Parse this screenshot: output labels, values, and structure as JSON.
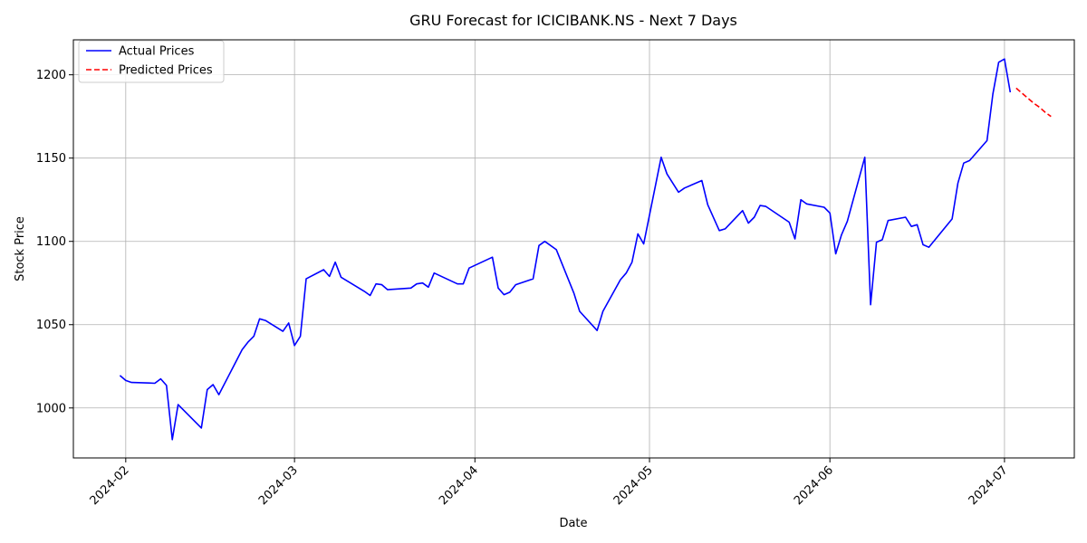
{
  "chart_data": {
    "type": "line",
    "title": "GRU Forecast for ICICIBANK.NS - Next 7 Days",
    "xlabel": "Date",
    "ylabel": "Stock Price",
    "xlim": [
      "2024-01-23",
      "2024-07-13"
    ],
    "ylim": [
      970,
      1221
    ],
    "grid": true,
    "legend_position": "top-left",
    "x_ticks": [
      {
        "date": "2024-02-01",
        "label": "2024-02"
      },
      {
        "date": "2024-03-01",
        "label": "2024-03"
      },
      {
        "date": "2024-04-01",
        "label": "2024-04"
      },
      {
        "date": "2024-05-01",
        "label": "2024-05"
      },
      {
        "date": "2024-06-01",
        "label": "2024-06"
      },
      {
        "date": "2024-07-01",
        "label": "2024-07"
      }
    ],
    "y_ticks": [
      1000,
      1050,
      1100,
      1150,
      1200
    ],
    "series": [
      {
        "name": "Actual Prices",
        "color": "#0000ff",
        "style": "solid",
        "points": [
          [
            "2024-01-31",
            1019.5
          ],
          [
            "2024-02-01",
            1016.5
          ],
          [
            "2024-02-02",
            1015.3
          ],
          [
            "2024-02-05",
            1015.0
          ],
          [
            "2024-02-06",
            1014.8
          ],
          [
            "2024-02-07",
            1017.5
          ],
          [
            "2024-02-08",
            1013.5
          ],
          [
            "2024-02-09",
            981.0
          ],
          [
            "2024-02-10",
            1002.0
          ],
          [
            "2024-02-14",
            988.0
          ],
          [
            "2024-02-15",
            1011.0
          ],
          [
            "2024-02-16",
            1014.0
          ],
          [
            "2024-02-17",
            1008.0
          ],
          [
            "2024-02-21",
            1035.0
          ],
          [
            "2024-02-22",
            1039.5
          ],
          [
            "2024-02-23",
            1043.0
          ],
          [
            "2024-02-24",
            1053.5
          ],
          [
            "2024-02-25",
            1052.5
          ],
          [
            "2024-02-28",
            1046.0
          ],
          [
            "2024-02-29",
            1051.0
          ],
          [
            "2024-03-01",
            1037.5
          ],
          [
            "2024-03-02",
            1043.0
          ],
          [
            "2024-03-03",
            1077.5
          ],
          [
            "2024-03-06",
            1083.0
          ],
          [
            "2024-03-07",
            1079.0
          ],
          [
            "2024-03-08",
            1087.5
          ],
          [
            "2024-03-09",
            1078.5
          ],
          [
            "2024-03-13",
            1070.0
          ],
          [
            "2024-03-14",
            1067.5
          ],
          [
            "2024-03-15",
            1074.5
          ],
          [
            "2024-03-16",
            1074.0
          ],
          [
            "2024-03-17",
            1071.0
          ],
          [
            "2024-03-21",
            1072.0
          ],
          [
            "2024-03-22",
            1074.5
          ],
          [
            "2024-03-23",
            1075.0
          ],
          [
            "2024-03-24",
            1072.5
          ],
          [
            "2024-03-25",
            1081.0
          ],
          [
            "2024-03-29",
            1074.5
          ],
          [
            "2024-03-30",
            1074.5
          ],
          [
            "2024-03-31",
            1084.0
          ],
          [
            "2024-04-04",
            1090.5
          ],
          [
            "2024-04-05",
            1072.0
          ],
          [
            "2024-04-06",
            1068.0
          ],
          [
            "2024-04-07",
            1069.5
          ],
          [
            "2024-04-08",
            1074.0
          ],
          [
            "2024-04-11",
            1077.5
          ],
          [
            "2024-04-12",
            1097.5
          ],
          [
            "2024-04-13",
            1100.0
          ],
          [
            "2024-04-15",
            1095.0
          ],
          [
            "2024-04-18",
            1069.0
          ],
          [
            "2024-04-19",
            1058.0
          ],
          [
            "2024-04-22",
            1046.5
          ],
          [
            "2024-04-23",
            1058.0
          ],
          [
            "2024-04-26",
            1077.0
          ],
          [
            "2024-04-27",
            1081.0
          ],
          [
            "2024-04-28",
            1087.5
          ],
          [
            "2024-04-29",
            1104.5
          ],
          [
            "2024-04-30",
            1098.5
          ],
          [
            "2024-05-03",
            1150.5
          ],
          [
            "2024-05-04",
            1140.5
          ],
          [
            "2024-05-06",
            1129.5
          ],
          [
            "2024-05-07",
            1132.0
          ],
          [
            "2024-05-10",
            1136.5
          ],
          [
            "2024-05-11",
            1122.0
          ],
          [
            "2024-05-13",
            1106.5
          ],
          [
            "2024-05-14",
            1107.5
          ],
          [
            "2024-05-17",
            1118.5
          ],
          [
            "2024-05-18",
            1111.0
          ],
          [
            "2024-05-19",
            1114.5
          ],
          [
            "2024-05-20",
            1121.5
          ],
          [
            "2024-05-21",
            1121.0
          ],
          [
            "2024-05-25",
            1111.5
          ],
          [
            "2024-05-26",
            1101.5
          ],
          [
            "2024-05-27",
            1125.0
          ],
          [
            "2024-05-28",
            1122.5
          ],
          [
            "2024-05-31",
            1120.5
          ],
          [
            "2024-06-01",
            1117.0
          ],
          [
            "2024-06-02",
            1092.5
          ],
          [
            "2024-06-03",
            1104.0
          ],
          [
            "2024-06-04",
            1112.0
          ],
          [
            "2024-06-07",
            1150.5
          ],
          [
            "2024-06-08",
            1062.0
          ],
          [
            "2024-06-09",
            1099.5
          ],
          [
            "2024-06-10",
            1101.0
          ],
          [
            "2024-06-11",
            1112.5
          ],
          [
            "2024-06-14",
            1114.5
          ],
          [
            "2024-06-15",
            1109.0
          ],
          [
            "2024-06-16",
            1110.0
          ],
          [
            "2024-06-17",
            1098.0
          ],
          [
            "2024-06-18",
            1096.5
          ],
          [
            "2024-06-22",
            1113.5
          ],
          [
            "2024-06-23",
            1135.0
          ],
          [
            "2024-06-24",
            1147.0
          ],
          [
            "2024-06-25",
            1148.5
          ],
          [
            "2024-06-28",
            1160.5
          ],
          [
            "2024-06-29",
            1188.5
          ],
          [
            "2024-06-30",
            1207.5
          ],
          [
            "2024-07-01",
            1209.5
          ],
          [
            "2024-07-02",
            1189.5
          ]
        ]
      },
      {
        "name": "Predicted Prices",
        "color": "#ff0000",
        "style": "dashed",
        "points": [
          [
            "2024-07-03",
            1192.0
          ],
          [
            "2024-07-04",
            1189.0
          ],
          [
            "2024-07-05",
            1186.0
          ],
          [
            "2024-07-06",
            1183.0
          ],
          [
            "2024-07-07",
            1180.5
          ],
          [
            "2024-07-08",
            1177.5
          ],
          [
            "2024-07-09",
            1175.0
          ]
        ]
      }
    ]
  }
}
